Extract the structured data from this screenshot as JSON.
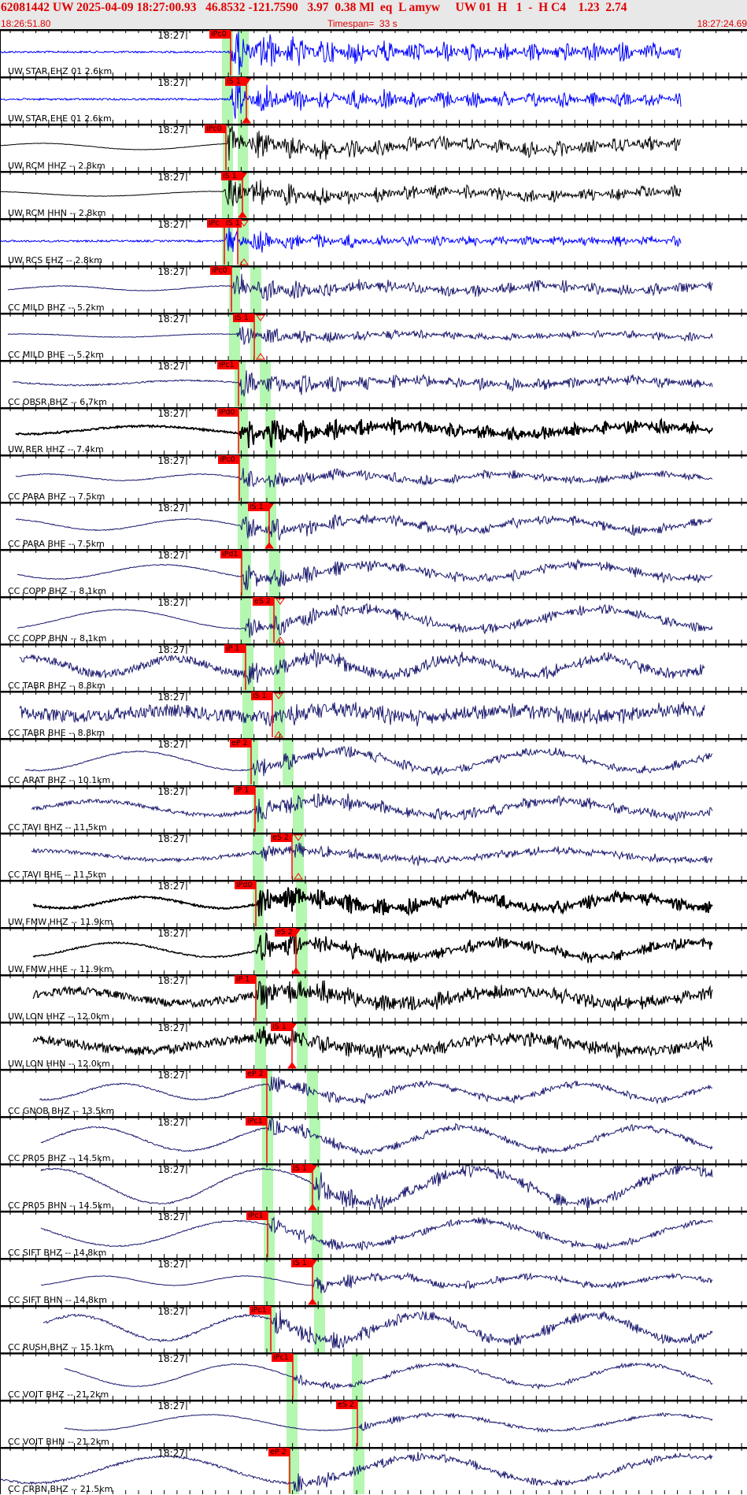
{
  "header": {
    "event_line": "62081442 UW 2025-04-09 18:27:00.93   46.8532 -121.7590   3.97  0.38 Ml  eq  L amyw     UW 01  H   1  -  H C4    1.23  2.74",
    "start_time": "18:26:51.80",
    "timespan": "Timespan=  33 s",
    "end_time": "18:27:24.69"
  },
  "minute_label": "18:27",
  "colors": {
    "pick": "#ff0000",
    "window": "#b4f7b0",
    "blue_trace": "#0000ff",
    "black_trace": "#000000",
    "navy_trace": "#1c1a6e",
    "header_text": "#e00000"
  },
  "traces": [
    {
      "label": "UW STAR EHZ 01 2.6km",
      "picks": [
        "iPc0"
      ]
    },
    {
      "label": "UW STAR EHE 01 2.6km",
      "picks": [
        "iS 1"
      ]
    },
    {
      "label": "UW RCM HHZ -- 2.8km",
      "picks": [
        "iPc0"
      ]
    },
    {
      "label": "UW RCM HHN -- 2.8km",
      "picks": [
        "iS 1"
      ]
    },
    {
      "label": "UW RCS EHZ -- 2.8km",
      "picks": [
        "iPc",
        "iS 1"
      ]
    },
    {
      "label": "CC MILD BHZ -- 5.2km",
      "picks": [
        "iPc0"
      ]
    },
    {
      "label": "CC MILD BHE -- 5.2km",
      "picks": [
        "iS 1"
      ]
    },
    {
      "label": "CC OBSR BHZ -- 6.7km",
      "picks": [
        "iPc1"
      ]
    },
    {
      "label": "UW RER HHZ -- 7.4km",
      "picks": [
        "iPd0"
      ]
    },
    {
      "label": "CC PARA BHZ -- 7.5km",
      "picks": [
        "iPc0"
      ]
    },
    {
      "label": "CC PARA BHE -- 7.5km",
      "picks": [
        "iS 1"
      ]
    },
    {
      "label": "CC COPP BHZ -- 8.1km",
      "picks": [
        "iPd1"
      ]
    },
    {
      "label": "CC COPP BHN -- 8.1km",
      "picks": [
        "eS 2"
      ]
    },
    {
      "label": "CC TABR BHZ -- 8.8km",
      "picks": [
        "iP 1"
      ]
    },
    {
      "label": "CC TABR BHE -- 8.8km",
      "picks": [
        "iS 1"
      ]
    },
    {
      "label": "CC ARAT BHZ -- 10.1km",
      "picks": [
        "eP 2"
      ]
    },
    {
      "label": "CC TAVI BHZ -- 11.5km",
      "picks": [
        "iP 1"
      ]
    },
    {
      "label": "CC TAVI BHE -- 11.5km",
      "picks": [
        "eS 2"
      ]
    },
    {
      "label": "UW FMW HHZ -- 11.9km",
      "picks": [
        "iPd0"
      ]
    },
    {
      "label": "UW FMW HHE -- 11.9km",
      "picks": [
        "eS 2"
      ]
    },
    {
      "label": "UW LON HHZ -- 12.0km",
      "picks": [
        "iP 1"
      ]
    },
    {
      "label": "UW LON HHN -- 12.0km",
      "picks": [
        "iS 1"
      ]
    },
    {
      "label": "CC GNOB BHZ -- 13.5km",
      "picks": [
        "eP 2"
      ]
    },
    {
      "label": "CC PR05 BHZ -- 14.5km",
      "picks": [
        "iPc1"
      ]
    },
    {
      "label": "CC PR05 BHN -- 14.5km",
      "picks": [
        "iS 1"
      ]
    },
    {
      "label": "CC SIFT BHZ -- 14.8km",
      "picks": [
        "iPc1"
      ]
    },
    {
      "label": "CC SIFT BHN -- 14.8km",
      "picks": [
        "iS 1"
      ]
    },
    {
      "label": "CC RUSH BHZ -- 15.1km",
      "picks": [
        "iPc1"
      ]
    },
    {
      "label": "CC VOIT BHZ -- 21.2km",
      "picks": [
        "iPc1"
      ]
    },
    {
      "label": "CC VOIT BHN -- 21.2km",
      "picks": [
        "eS 2"
      ]
    },
    {
      "label": "CC CRBN BHZ -- 21.5km",
      "picks": [
        "eP 2"
      ]
    }
  ]
}
